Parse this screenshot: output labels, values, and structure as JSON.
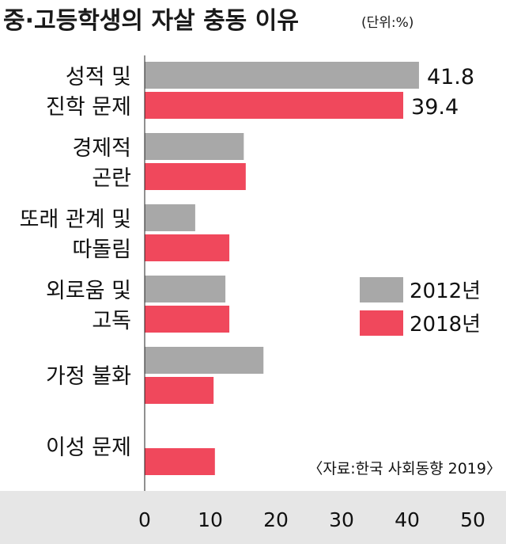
{
  "chart_data": {
    "type": "bar",
    "orientation": "horizontal",
    "title": "중·고등학생의 자살 충동 이유",
    "unit": "(단위:%)",
    "categories": [
      [
        "성적 및",
        "진학 문제"
      ],
      [
        "경제적",
        "곤란"
      ],
      [
        "또래 관계 및",
        "따돌림"
      ],
      [
        "외로움 및",
        "고독"
      ],
      [
        "가정 불화"
      ],
      [
        "이성 문제"
      ]
    ],
    "series": [
      {
        "name": "2012년",
        "color": "#a8a8a8",
        "values": [
          41.8,
          15.1,
          7.7,
          12.3,
          18.1,
          0
        ]
      },
      {
        "name": "2018년",
        "color": "#f0485c",
        "values": [
          39.4,
          15.4,
          12.9,
          12.9,
          10.5,
          10.7
        ]
      }
    ],
    "data_labels": {
      "0": [
        "41.8",
        "39.4"
      ]
    },
    "xlim": [
      0,
      50
    ],
    "ticks": [
      "0",
      "10",
      "20",
      "30",
      "40",
      "50"
    ],
    "legend_position": "right",
    "source": "〈자료:한국 사회동향 2019〉"
  }
}
